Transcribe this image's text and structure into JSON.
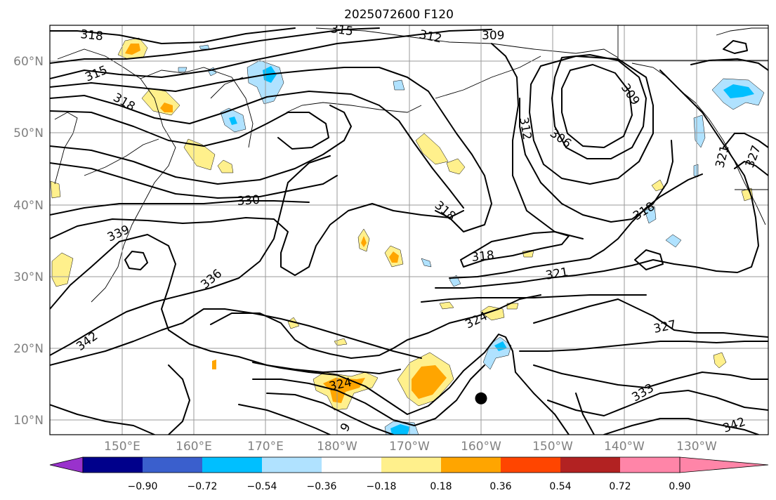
{
  "title": "2025072600 F120",
  "lat_labels": [
    "60°N",
    "50°N",
    "40°N",
    "30°N",
    "20°N",
    "10°N"
  ],
  "lon_labels": [
    "150°E",
    "160°E",
    "170°E",
    "180°W",
    "170°W",
    "160°W",
    "150°W",
    "140°W",
    "130°W"
  ],
  "contour_labels": [
    {
      "text": "318"
    },
    {
      "text": "315"
    },
    {
      "text": "312"
    },
    {
      "text": "309"
    },
    {
      "text": "315"
    },
    {
      "text": "318"
    },
    {
      "text": "312"
    },
    {
      "text": "306"
    },
    {
      "text": "309"
    },
    {
      "text": "330"
    },
    {
      "text": "318"
    },
    {
      "text": "318"
    },
    {
      "text": "339"
    },
    {
      "text": "336"
    },
    {
      "text": "318"
    },
    {
      "text": "321"
    },
    {
      "text": "324"
    },
    {
      "text": "327"
    },
    {
      "text": "342"
    },
    {
      "text": "324"
    },
    {
      "text": "333"
    },
    {
      "text": "342"
    },
    {
      "text": "321"
    },
    {
      "text": "327"
    },
    {
      "text": "9"
    }
  ],
  "colorbar": {
    "tick_labels": [
      "−0.90",
      "−0.72",
      "−0.54",
      "−0.36",
      "−0.18",
      "0.18",
      "0.36",
      "0.54",
      "0.72",
      "0.90"
    ],
    "colors": [
      "#9932cc",
      "#00008b",
      "#3a5fcd",
      "#00bfff",
      "#b0e2ff",
      "#ffffff",
      "#fff08c",
      "#ffa500",
      "#ff4500",
      "#b22222",
      "#ff85a8"
    ]
  },
  "marker": {
    "name": "storm-position-marker",
    "lon": -160,
    "lat": 13
  }
}
